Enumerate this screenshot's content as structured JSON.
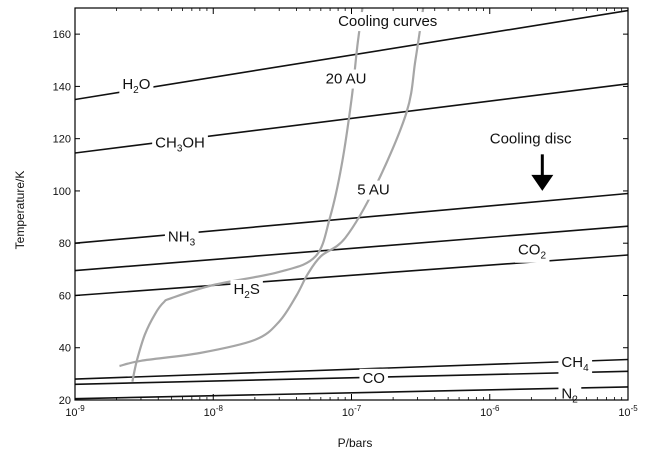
{
  "chart_data": {
    "type": "line",
    "xlabel": "P/bars",
    "ylabel": "Temperature/K",
    "x_scale": "log",
    "xlim": [
      1e-09,
      1e-05
    ],
    "ylim": [
      20,
      170
    ],
    "x_ticks": [
      {
        "value": 1e-09,
        "base": "10",
        "exp": "-9"
      },
      {
        "value": 1e-08,
        "base": "10",
        "exp": "-8"
      },
      {
        "value": 1e-07,
        "base": "10",
        "exp": "-7"
      },
      {
        "value": 1e-06,
        "base": "10",
        "exp": "-6"
      },
      {
        "value": 1e-05,
        "base": "10",
        "exp": "-5"
      }
    ],
    "y_ticks": [
      20,
      40,
      60,
      80,
      100,
      120,
      140,
      160
    ],
    "grid": false,
    "condensation_curves": [
      {
        "name": "H2O",
        "label_parts": [
          [
            "H",
            ""
          ],
          [
            "2",
            "sub"
          ],
          [
            "O",
            ""
          ]
        ],
        "x": [
          1e-09,
          1e-05
        ],
        "y": [
          135,
          169
        ],
        "label_at": [
          2.2e-09,
          141
        ]
      },
      {
        "name": "CH3OH",
        "label_parts": [
          [
            "CH",
            ""
          ],
          [
            "3",
            "sub"
          ],
          [
            "OH",
            ""
          ]
        ],
        "x": [
          1e-09,
          1e-05
        ],
        "y": [
          114.5,
          141
        ],
        "label_at": [
          3.8e-09,
          118.5
        ]
      },
      {
        "name": "NH3",
        "label_parts": [
          [
            "NH",
            ""
          ],
          [
            "3",
            "sub"
          ]
        ],
        "x": [
          1e-09,
          1e-05
        ],
        "y": [
          80,
          99
        ],
        "label_at": [
          4.7e-09,
          82.5
        ]
      },
      {
        "name": "CO2",
        "label_parts": [
          [
            "CO",
            ""
          ],
          [
            "2",
            "sub"
          ]
        ],
        "x": [
          1e-09,
          1e-05
        ],
        "y": [
          69.5,
          86.5
        ],
        "label_at": [
          1.6e-06,
          77.5
        ]
      },
      {
        "name": "H2S",
        "label_parts": [
          [
            "H",
            ""
          ],
          [
            "2",
            "sub"
          ],
          [
            "S",
            ""
          ]
        ],
        "x": [
          1e-09,
          1e-05
        ],
        "y": [
          60,
          75.5
        ],
        "label_at": [
          1.4e-08,
          62.5
        ]
      },
      {
        "name": "CH4",
        "label_parts": [
          [
            "CH",
            ""
          ],
          [
            "4",
            "sub"
          ]
        ],
        "x": [
          1e-09,
          1e-05
        ],
        "y": [
          28,
          35.5
        ],
        "label_at": [
          3.3e-06,
          34.5
        ]
      },
      {
        "name": "CO",
        "label_parts": [
          [
            "CO",
            ""
          ]
        ],
        "x": [
          1e-09,
          1e-05
        ],
        "y": [
          26,
          31
        ],
        "label_at": [
          1.2e-07,
          28.5
        ]
      },
      {
        "name": "N2",
        "label_parts": [
          [
            "N",
            ""
          ],
          [
            "2",
            "sub"
          ]
        ],
        "x": [
          1e-09,
          1e-05
        ],
        "y": [
          20.5,
          25
        ],
        "label_at": [
          3.3e-06,
          22.5
        ]
      }
    ],
    "cooling_curves": [
      {
        "name": "20 AU",
        "x": [
          2.6e-09,
          2.8e-09,
          3.2e-09,
          3.8e-09,
          4.4e-09,
          5e-09,
          1e-08,
          3e-08,
          5.5e-08,
          7e-08,
          8.5e-08,
          1e-07,
          1.1e-07,
          1.2e-07
        ],
        "y": [
          27,
          35,
          45,
          53,
          57.5,
          59,
          64,
          69,
          75,
          90,
          110,
          135,
          155,
          170
        ]
      },
      {
        "name": "5 AU",
        "x": [
          2.1e-09,
          3e-09,
          8e-09,
          2e-08,
          3e-08,
          4e-08,
          4.8e-08,
          6e-08,
          9e-08,
          1.5e-07,
          2.5e-07,
          2.9e-07,
          3.3e-07
        ],
        "y": [
          33,
          35,
          38,
          43,
          50,
          60,
          68,
          75,
          82,
          102,
          130,
          150,
          170
        ]
      }
    ],
    "annotations": [
      {
        "text": "Cooling curves",
        "at": [
          8e-08,
          165
        ]
      },
      {
        "text": "20 AU",
        "at": [
          6.5e-08,
          143
        ]
      },
      {
        "text": "5 AU",
        "at": [
          1.1e-07,
          100.5
        ]
      },
      {
        "text": "Cooling disc",
        "at": [
          1e-06,
          120
        ]
      }
    ],
    "arrow": {
      "x": 2.4e-06,
      "y_from": 114,
      "y_to": 100
    },
    "colors": {
      "condensation": "#111111",
      "cooling": "#a6a6a6",
      "axes": "#000000"
    }
  }
}
